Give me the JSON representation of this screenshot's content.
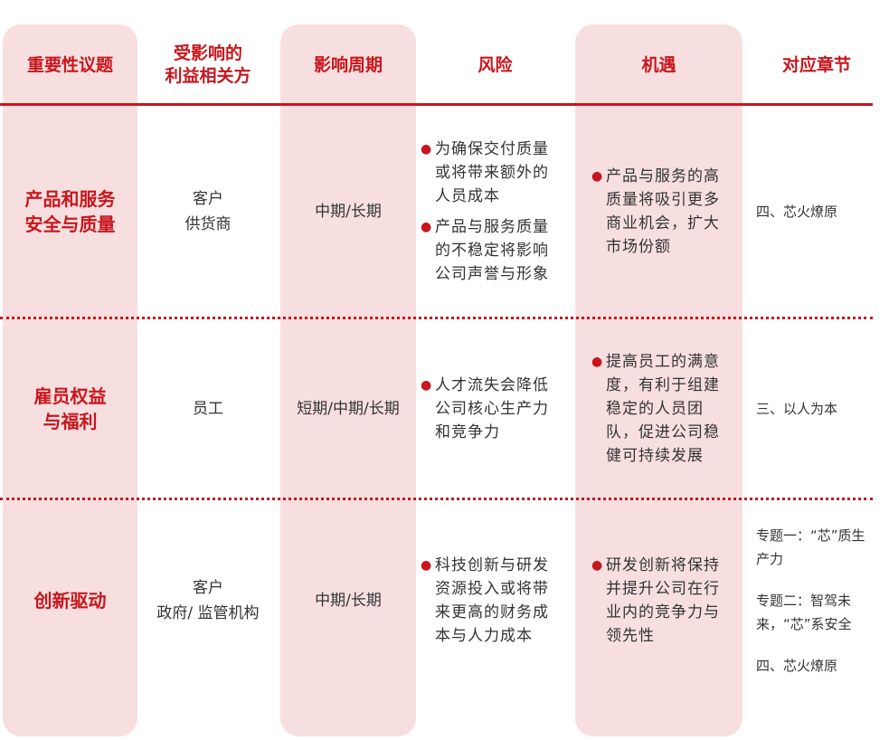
{
  "headers": {
    "topic": "重要性议题",
    "stakeholders_line1": "受影响的",
    "stakeholders_line2": "利益相关方",
    "period": "影响周期",
    "risk": "风险",
    "opportunity": "机遇",
    "chapter": "对应章节"
  },
  "rows": [
    {
      "topic_line1": "产品和服务",
      "topic_line2": "安全与质量",
      "stakeholders_line1": "客户",
      "stakeholders_line2": "供货商",
      "period": "中期/长期",
      "risks": [
        "为确保交付质量或将带来额外的人员成本",
        "产品与服务质量的不稳定将影响公司声誉与形象"
      ],
      "opportunities": [
        "产品与服务的高质量将吸引更多商业机会，扩大市场份额"
      ],
      "chapters": [
        "四、芯火燎原"
      ]
    },
    {
      "topic_line1": "雇员权益",
      "topic_line2": "与福利",
      "stakeholders_line1": "员工",
      "period": "短期/中期/长期",
      "risks": [
        "人才流失会降低公司核心生产力和竞争力"
      ],
      "opportunities": [
        "提高员工的满意度，有利于组建稳定的人员团队，促进公司稳健可持续发展"
      ],
      "chapters": [
        "三、以人为本"
      ]
    },
    {
      "topic_line1": "创新驱动",
      "stakeholders_line1": "客户",
      "stakeholders_line2": "政府/ 监管机构",
      "period": "中期/长期",
      "risks": [
        "科技创新与研发资源投入或将带来更高的财务成本与人力成本"
      ],
      "opportunities": [
        "研发创新将保持并提升公司在行业内的竞争力与领先性"
      ],
      "chapters": [
        "专题一：“芯”质生产力",
        "专题二：智驾未来，“芯”系安全",
        "四、芯火燎原"
      ]
    }
  ],
  "colors": {
    "accent": "#c8161d",
    "column_band": "#f7dfe0",
    "text": "#333333"
  }
}
